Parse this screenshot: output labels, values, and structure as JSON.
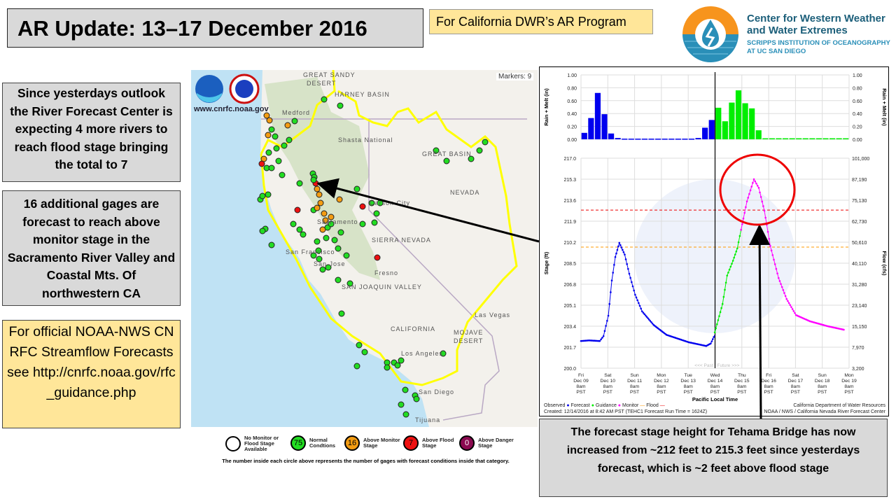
{
  "header": {
    "title": "AR Update: 13–17 December 2016",
    "program": "For California DWR’s AR Program"
  },
  "logo": {
    "line1": "Center for Western Weather",
    "line2": "and Water Extremes",
    "line3": "SCRIPPS INSTITUTION OF OCEANOGRAPHY",
    "line4": "AT UC SAN DIEGO",
    "colors": {
      "orange": "#f7941d",
      "blue": "#2a8fb8"
    }
  },
  "notes": [
    "Since yesterdays outlook the River Forecast Center is expecting 4 more rivers to reach flood stage bringing the total to 7",
    "16 additional  gages are forecast to reach above monitor  stage in the Sacramento River Valley and Coastal Mts. Of northwestern  CA",
    "For official NOAA-NWS CNRFC Streamflow Forecasts see http://cnrfc.noaa.gov/rfc_guidance.php"
  ],
  "map": {
    "url": "www.cnrfc.noaa.gov",
    "markers_label": "Markers: 9",
    "labels": [
      "GREAT SANDY",
      "DESERT",
      "HARNEY BASIN",
      "Medford",
      "Shasta National",
      "NEVADA",
      "Carson City",
      "Sacramento",
      "San Francisco",
      "San Jose",
      "Fresno",
      "SAN JOAQUIN VALLEY",
      "SIERRA NEVADA",
      "CALIFORNIA",
      "MOJAVE",
      "DESERT",
      "Las Vegas",
      "Los Angeles",
      "San Diego",
      "Tijuana",
      "GREAT BASIN"
    ],
    "colors": {
      "normal": "#22dd22",
      "monitor": "#f39c12",
      "flood": "#ee1111",
      "danger": "#8b0a50",
      "boundary": "#ffff00"
    }
  },
  "legend": {
    "items": [
      {
        "count": "",
        "label": "No Monitor or Flood Stage Available",
        "color": "#ffffff"
      },
      {
        "count": "75",
        "label": "Normal Condtions",
        "color": "#22dd22"
      },
      {
        "count": "16",
        "label": "Above Monitor Stage",
        "color": "#f39c12"
      },
      {
        "count": "7",
        "label": "Above Flood Stage",
        "color": "#ee1111"
      },
      {
        "count": "0",
        "label": "Above Danger Stage",
        "color": "#8b0a50"
      }
    ],
    "note": "The number inside each circle above represents the number of gages with forecast conditions inside that category."
  },
  "chart_data": [
    {
      "type": "bar",
      "title": "",
      "ylabel": "Rain + Melt (in)",
      "ylim": [
        0,
        1
      ],
      "yticks": [
        "0.00",
        "0.20",
        "0.40",
        "0.60",
        "0.80",
        "1.00"
      ],
      "series": [
        {
          "name": "Observed",
          "color": "#0000ee",
          "values": [
            0.1,
            0.33,
            0.72,
            0.39,
            0.09,
            0.02,
            0.01,
            0.01,
            0.01,
            0.01,
            0.01,
            0.01,
            0.01,
            0.01,
            0.01,
            0.01,
            0.01,
            0.02,
            0.18,
            0.3
          ]
        },
        {
          "name": "Forecast",
          "color": "#00ee00",
          "values": [
            0.49,
            0.28,
            0.57,
            0.76,
            0.56,
            0.48,
            0.14,
            0.005,
            0.005,
            0.005,
            0.005,
            0.005,
            0.005,
            0.005,
            0.005,
            0.005,
            0.005,
            0.005,
            0.005,
            0.005
          ]
        }
      ]
    },
    {
      "type": "line",
      "ylabel": "Stage (ft)",
      "y2label": "Flow (cfs)",
      "xlabel": "Pacific Local Time",
      "ylim": [
        200,
        217
      ],
      "yticks": [
        "200.0",
        "201.7",
        "203.4",
        "205.1",
        "206.8",
        "208.5",
        "210.2",
        "211.9",
        "213.6",
        "215.3",
        "217.0"
      ],
      "y2ticks": [
        "3,200",
        "7,970",
        "15,150",
        "23,140",
        "31,280",
        "40,110",
        "50,610",
        "62,730",
        "75,130",
        "87,190",
        "101,000"
      ],
      "xticks": [
        [
          "Fri",
          "Dec 09"
        ],
        [
          "Sat",
          "Dec 10"
        ],
        [
          "Sun",
          "Dec 11"
        ],
        [
          "Mon",
          "Dec 12"
        ],
        [
          "Tue",
          "Dec 13"
        ],
        [
          "Wed",
          "Dec 14"
        ],
        [
          "Thu",
          "Dec 15"
        ],
        [
          "Fri",
          "Dec 16"
        ],
        [
          "Sat",
          "Dec 17"
        ],
        [
          "Sun",
          "Dec 18"
        ],
        [
          "Mon",
          "Dec 19"
        ]
      ],
      "xtick_time": "8am",
      "xtick_tz": "PST",
      "past_label": "<<< Past",
      "future_label": "Future >>>",
      "flood_stage": 212.8,
      "monitor_stage": 209.8,
      "series": [
        {
          "name": "Observed",
          "color": "#0000ee",
          "points": [
            [
              0,
              202.2
            ],
            [
              0.3,
              202.25
            ],
            [
              0.7,
              202.2
            ],
            [
              0.84,
              202.6
            ],
            [
              1.02,
              204.25
            ],
            [
              1.15,
              207.1
            ],
            [
              1.28,
              209.0
            ],
            [
              1.43,
              210.15
            ],
            [
              1.63,
              209.2
            ],
            [
              1.8,
              207.65
            ],
            [
              2.02,
              205.95
            ],
            [
              2.28,
              204.6
            ],
            [
              2.71,
              203.5
            ],
            [
              3.19,
              202.7
            ],
            [
              4.02,
              202.1
            ],
            [
              4.67,
              201.8
            ],
            [
              4.84,
              202.0
            ],
            [
              4.99,
              202.7
            ]
          ]
        },
        {
          "name": "Guidance",
          "color": "#00ee00",
          "points": [
            [
              4.99,
              202.9
            ],
            [
              5.28,
              205.2
            ],
            [
              5.45,
              207.5
            ],
            [
              5.67,
              208.7
            ],
            [
              5.83,
              209.7
            ],
            [
              5.97,
              211.2
            ]
          ]
        },
        {
          "name": "Monitor",
          "color": "#ff00ff",
          "points": [
            [
              5.97,
              211.2
            ],
            [
              6.19,
              213.5
            ],
            [
              6.45,
              215.3
            ],
            [
              6.63,
              214.6
            ],
            [
              6.84,
              212.75
            ],
            [
              7.06,
              209.9
            ],
            [
              7.37,
              207.3
            ],
            [
              7.67,
              205.6
            ],
            [
              8.02,
              204.3
            ],
            [
              8.54,
              203.8
            ],
            [
              9.2,
              203.4
            ],
            [
              9.84,
              203.1
            ]
          ]
        }
      ],
      "legend": {
        "observed": "Observed",
        "forecast": "Forecast",
        "guidance": "Guidance",
        "monitor": "Monitor",
        "flood": "Flood"
      },
      "footer": {
        "created": "Created: 12/14/2016 at 8:42 AM PST   (TEHC1 Forecast Run Time = 1624Z)",
        "agency1": "California Department of Water Resources",
        "agency2": "NOAA / NWS / California Nevada River Forecast Center"
      }
    }
  ],
  "bottom_note": "The forecast stage height for Tehama Bridge has now increased from ~212 feet to 215.3 feet since yesterdays forecast, which is ~2 feet above flood stage"
}
